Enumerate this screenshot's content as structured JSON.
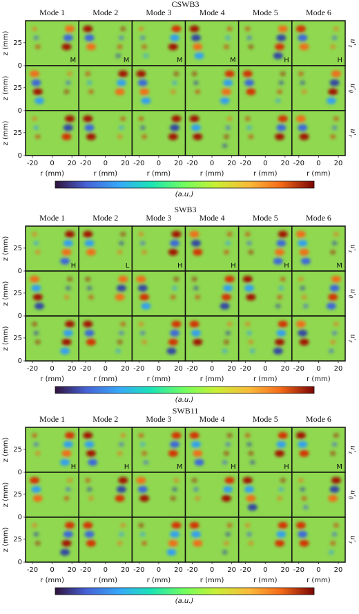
{
  "chart_data": [
    {
      "type": "heatmap",
      "title": "CSWB3",
      "columns": [
        "Mode 1",
        "Mode 2",
        "Mode 3",
        "Mode 4",
        "Mode 5",
        "Mode 6"
      ],
      "rows": [
        {
          "base": "u′",
          "sub": "z"
        },
        {
          "base": "u′",
          "sub": "θ"
        },
        {
          "base": "u′",
          "sub": "r"
        }
      ],
      "quality": [
        "M",
        "M",
        "M",
        "M",
        "H",
        "H"
      ],
      "xlabel": "r (mm)",
      "ylabel": "z (mm)",
      "xlim": [
        -27,
        27
      ],
      "xticks": [
        -20,
        0,
        20
      ],
      "ylim": [
        0,
        49
      ],
      "yticks": [
        0,
        25
      ],
      "colorbar_label": "(a.u.)"
    },
    {
      "type": "heatmap",
      "title": "SWB3",
      "columns": [
        "Mode 1",
        "Mode 2",
        "Mode 3",
        "Mode 4",
        "Mode 5",
        "Mode 6"
      ],
      "rows": [
        {
          "base": "u′",
          "sub": "z"
        },
        {
          "base": "u′",
          "sub": "θ"
        },
        {
          "base": "u′",
          "sub": "r"
        }
      ],
      "quality": [
        "H",
        "L",
        "H",
        "H",
        "H",
        "M"
      ],
      "xlabel": "r (mm)",
      "ylabel": "z (mm)",
      "xlim": [
        -27,
        27
      ],
      "xticks": [
        -20,
        0,
        20
      ],
      "ylim": [
        0,
        49
      ],
      "yticks": [
        0,
        25
      ],
      "colorbar_label": "(a.u.)"
    },
    {
      "type": "heatmap",
      "title": "SWB11",
      "columns": [
        "Mode 1",
        "Mode 2",
        "Mode 3",
        "Mode 4",
        "Mode 5",
        "Mode 6"
      ],
      "rows": [
        {
          "base": "u′",
          "sub": "z"
        },
        {
          "base": "u′",
          "sub": "θ"
        },
        {
          "base": "u′",
          "sub": "r"
        }
      ],
      "quality": [
        "H",
        "H",
        "M",
        "H",
        "H",
        "M"
      ],
      "xlabel": "r (mm)",
      "ylabel": "z (mm)",
      "xlim": [
        -27,
        27
      ],
      "xticks": [
        -20,
        0,
        20
      ],
      "ylim": [
        0,
        49
      ],
      "yticks": [
        0,
        25
      ],
      "colorbar_label": "(a.u.)"
    }
  ]
}
